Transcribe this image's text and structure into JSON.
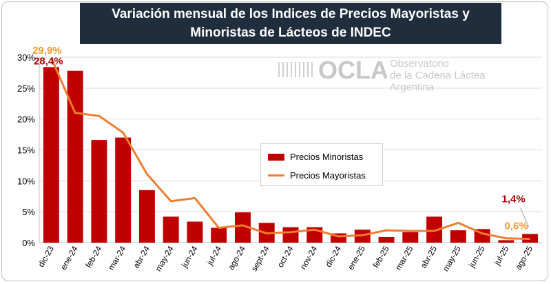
{
  "title": "Variación mensual de los Indices de Precios Mayoristas y Minoristas de Lácteos de INDEC",
  "logo": {
    "name": "OCLA",
    "line1": "Observatorio",
    "line2": "de la Cadena Láctea",
    "line3": "Argentina"
  },
  "legend": {
    "bar_label": "Precios Minoristas",
    "line_label": "Precios Mayoristas"
  },
  "colors": {
    "bars": "#c00000",
    "line": "#ed7d31",
    "title_bg": "#1f2d3d"
  },
  "chart_data": {
    "type": "bar",
    "categories": [
      "dic-23",
      "ene-24",
      "feb-24",
      "mar-24",
      "abr-24",
      "may-24",
      "jun-24",
      "jul-24",
      "ago-24",
      "sept-24",
      "oct-24",
      "nov-24",
      "dic-24",
      "ene-25",
      "feb-25",
      "mar-25",
      "abr-25",
      "may-25",
      "jun-25",
      "jul-25",
      "ago-25"
    ],
    "series": [
      {
        "name": "Precios Minoristas",
        "type": "bar",
        "values": [
          28.4,
          27.8,
          16.6,
          17.0,
          8.5,
          4.2,
          3.4,
          2.4,
          4.9,
          3.2,
          2.5,
          2.5,
          1.5,
          2.1,
          0.9,
          1.7,
          4.2,
          2.0,
          2.2,
          0.4,
          1.4
        ]
      },
      {
        "name": "Precios Mayoristas",
        "type": "line",
        "values": [
          29.9,
          21.0,
          20.5,
          17.8,
          11.1,
          6.7,
          7.2,
          2.4,
          2.8,
          1.5,
          1.7,
          2.1,
          1.0,
          1.2,
          2.0,
          1.9,
          1.9,
          3.2,
          1.5,
          0.7,
          0.6
        ]
      }
    ],
    "ylim": [
      0,
      30
    ],
    "yticks": [
      "0%",
      "5%",
      "10%",
      "15%",
      "20%",
      "25%",
      "30%"
    ],
    "grid": true,
    "legend_position": "center",
    "annotations": [
      {
        "text": "29,9%",
        "series": "Precios Mayoristas",
        "index": 0
      },
      {
        "text": "28,4%",
        "series": "Precios Minoristas",
        "index": 0
      },
      {
        "text": "1,4%",
        "series": "Precios Minoristas",
        "index": 20
      },
      {
        "text": "0,6%",
        "series": "Precios Mayoristas",
        "index": 20
      }
    ]
  }
}
